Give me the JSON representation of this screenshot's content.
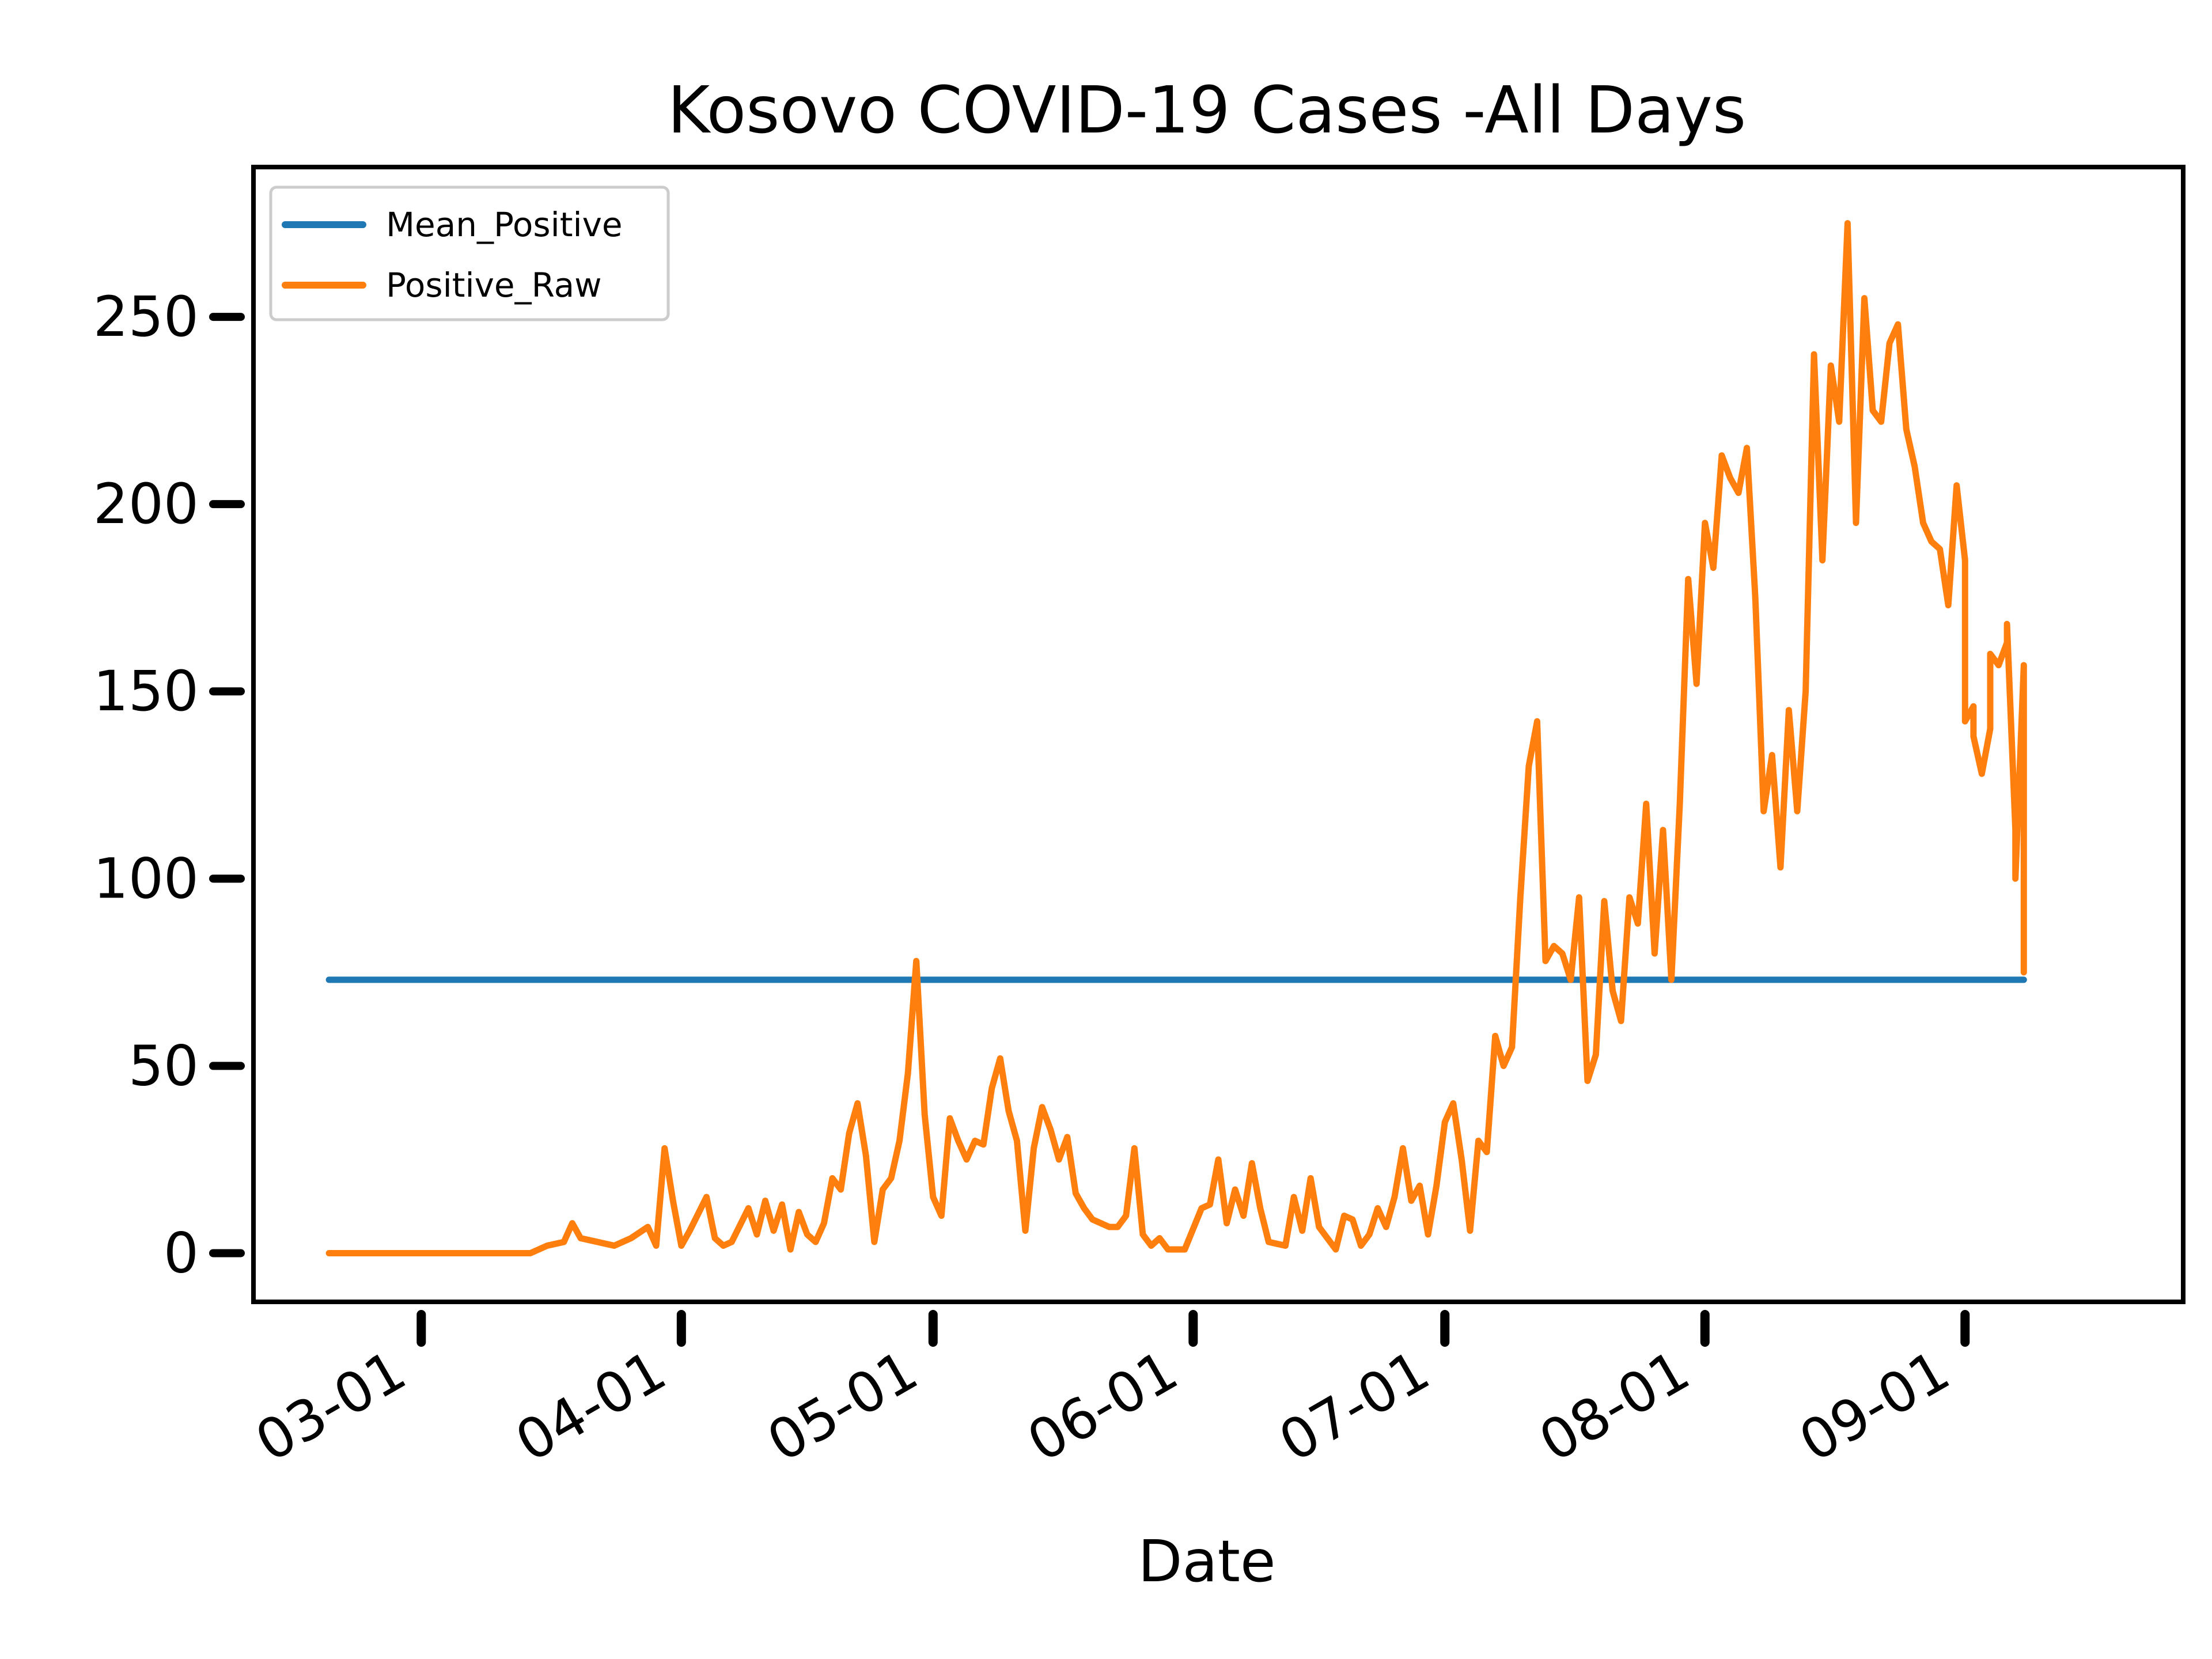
{
  "chart_data": {
    "type": "line",
    "title": "Kosovo COVID-19 Cases -All Days",
    "xlabel": "Date",
    "ylabel": "",
    "x_ticks": [
      "03-01",
      "04-01",
      "05-01",
      "06-01",
      "07-01",
      "08-01",
      "09-01"
    ],
    "x_tick_dates": [
      "2020-03-01",
      "2020-04-01",
      "2020-05-01",
      "2020-06-01",
      "2020-07-01",
      "2020-08-01",
      "2020-09-01"
    ],
    "x_range": [
      "2020-02-10",
      "2020-09-27"
    ],
    "y_ticks": [
      0,
      50,
      100,
      150,
      200,
      250
    ],
    "ylim": [
      -13,
      290
    ],
    "legend_position": "top-left",
    "colors": {
      "Mean_Positive": "#1f77b4",
      "Positive_Raw": "#ff7f0e"
    },
    "series": [
      {
        "name": "Mean_Positive",
        "points": [
          [
            "2020-02-19",
            73
          ],
          [
            "2020-09-08",
            73
          ]
        ]
      },
      {
        "name": "Positive_Raw",
        "points": [
          [
            "2020-02-19",
            0
          ],
          [
            "2020-02-23",
            0
          ],
          [
            "2020-02-27",
            0
          ],
          [
            "2020-03-02",
            0
          ],
          [
            "2020-03-06",
            0
          ],
          [
            "2020-03-10",
            0
          ],
          [
            "2020-03-14",
            0
          ],
          [
            "2020-03-16",
            2
          ],
          [
            "2020-03-18",
            3
          ],
          [
            "2020-03-19",
            8
          ],
          [
            "2020-03-20",
            4
          ],
          [
            "2020-03-22",
            3
          ],
          [
            "2020-03-24",
            2
          ],
          [
            "2020-03-26",
            4
          ],
          [
            "2020-03-28",
            7
          ],
          [
            "2020-03-29",
            2
          ],
          [
            "2020-03-30",
            28
          ],
          [
            "2020-03-31",
            14
          ],
          [
            "2020-04-01",
            2
          ],
          [
            "2020-04-02",
            6
          ],
          [
            "2020-04-04",
            15
          ],
          [
            "2020-04-05",
            4
          ],
          [
            "2020-04-06",
            2
          ],
          [
            "2020-04-07",
            3
          ],
          [
            "2020-04-09",
            12
          ],
          [
            "2020-04-10",
            5
          ],
          [
            "2020-04-11",
            14
          ],
          [
            "2020-04-12",
            6
          ],
          [
            "2020-04-13",
            13
          ],
          [
            "2020-04-14",
            1
          ],
          [
            "2020-04-15",
            11
          ],
          [
            "2020-04-16",
            5
          ],
          [
            "2020-04-17",
            3
          ],
          [
            "2020-04-18",
            8
          ],
          [
            "2020-04-19",
            20
          ],
          [
            "2020-04-20",
            17
          ],
          [
            "2020-04-21",
            32
          ],
          [
            "2020-04-22",
            40
          ],
          [
            "2020-04-23",
            26
          ],
          [
            "2020-04-24",
            3
          ],
          [
            "2020-04-25",
            17
          ],
          [
            "2020-04-26",
            20
          ],
          [
            "2020-04-27",
            30
          ],
          [
            "2020-04-28",
            48
          ],
          [
            "2020-04-29",
            78
          ],
          [
            "2020-04-30",
            37
          ],
          [
            "2020-05-01",
            15
          ],
          [
            "2020-05-02",
            10
          ],
          [
            "2020-05-03",
            36
          ],
          [
            "2020-05-04",
            30
          ],
          [
            "2020-05-05",
            25
          ],
          [
            "2020-05-06",
            30
          ],
          [
            "2020-05-07",
            29
          ],
          [
            "2020-05-08",
            44
          ],
          [
            "2020-05-09",
            52
          ],
          [
            "2020-05-10",
            38
          ],
          [
            "2020-05-11",
            30
          ],
          [
            "2020-05-12",
            6
          ],
          [
            "2020-05-13",
            28
          ],
          [
            "2020-05-14",
            39
          ],
          [
            "2020-05-15",
            33
          ],
          [
            "2020-05-16",
            25
          ],
          [
            "2020-05-17",
            31
          ],
          [
            "2020-05-18",
            16
          ],
          [
            "2020-05-19",
            12
          ],
          [
            "2020-05-20",
            9
          ],
          [
            "2020-05-21",
            8
          ],
          [
            "2020-05-22",
            7
          ],
          [
            "2020-05-23",
            7
          ],
          [
            "2020-05-24",
            10
          ],
          [
            "2020-05-25",
            28
          ],
          [
            "2020-05-26",
            5
          ],
          [
            "2020-05-27",
            2
          ],
          [
            "2020-05-28",
            4
          ],
          [
            "2020-05-29",
            1
          ],
          [
            "2020-05-31",
            1
          ],
          [
            "2020-06-02",
            12
          ],
          [
            "2020-06-03",
            13
          ],
          [
            "2020-06-04",
            25
          ],
          [
            "2020-06-05",
            8
          ],
          [
            "2020-06-06",
            17
          ],
          [
            "2020-06-07",
            10
          ],
          [
            "2020-06-08",
            24
          ],
          [
            "2020-06-09",
            12
          ],
          [
            "2020-06-10",
            3
          ],
          [
            "2020-06-12",
            2
          ],
          [
            "2020-06-13",
            15
          ],
          [
            "2020-06-14",
            6
          ],
          [
            "2020-06-15",
            20
          ],
          [
            "2020-06-16",
            7
          ],
          [
            "2020-06-18",
            1
          ],
          [
            "2020-06-19",
            10
          ],
          [
            "2020-06-20",
            9
          ],
          [
            "2020-06-21",
            2
          ],
          [
            "2020-06-22",
            5
          ],
          [
            "2020-06-23",
            12
          ],
          [
            "2020-06-24",
            7
          ],
          [
            "2020-06-25",
            15
          ],
          [
            "2020-06-26",
            28
          ],
          [
            "2020-06-27",
            14
          ],
          [
            "2020-06-28",
            18
          ],
          [
            "2020-06-29",
            5
          ],
          [
            "2020-06-30",
            18
          ],
          [
            "2020-07-01",
            35
          ],
          [
            "2020-07-02",
            40
          ],
          [
            "2020-07-03",
            25
          ],
          [
            "2020-07-04",
            6
          ],
          [
            "2020-07-05",
            30
          ],
          [
            "2020-07-06",
            27
          ],
          [
            "2020-07-07",
            58
          ],
          [
            "2020-07-08",
            50
          ],
          [
            "2020-07-09",
            55
          ],
          [
            "2020-07-10",
            95
          ],
          [
            "2020-07-11",
            130
          ],
          [
            "2020-07-12",
            142
          ],
          [
            "2020-07-13",
            78
          ],
          [
            "2020-07-14",
            82
          ],
          [
            "2020-07-15",
            80
          ],
          [
            "2020-07-16",
            73
          ],
          [
            "2020-07-17",
            95
          ],
          [
            "2020-07-18",
            46
          ],
          [
            "2020-07-19",
            53
          ],
          [
            "2020-07-20",
            94
          ],
          [
            "2020-07-21",
            70
          ],
          [
            "2020-07-22",
            62
          ],
          [
            "2020-07-23",
            95
          ],
          [
            "2020-07-24",
            88
          ],
          [
            "2020-07-25",
            120
          ],
          [
            "2020-07-26",
            80
          ],
          [
            "2020-07-27",
            113
          ],
          [
            "2020-07-28",
            73
          ],
          [
            "2020-07-29",
            120
          ],
          [
            "2020-07-30",
            180
          ],
          [
            "2020-07-31",
            152
          ],
          [
            "2020-08-01",
            195
          ],
          [
            "2020-08-02",
            183
          ],
          [
            "2020-08-03",
            213
          ],
          [
            "2020-08-04",
            207
          ],
          [
            "2020-08-05",
            203
          ],
          [
            "2020-08-06",
            215
          ],
          [
            "2020-08-07",
            175
          ],
          [
            "2020-08-08",
            118
          ],
          [
            "2020-08-09",
            133
          ],
          [
            "2020-08-10",
            103
          ],
          [
            "2020-08-11",
            145
          ],
          [
            "2020-08-12",
            118
          ],
          [
            "2020-08-13",
            150
          ],
          [
            "2020-08-14",
            240
          ],
          [
            "2020-08-15",
            185
          ],
          [
            "2020-08-16",
            237
          ],
          [
            "2020-08-17",
            222
          ],
          [
            "2020-08-18",
            275
          ],
          [
            "2020-08-19",
            195
          ],
          [
            "2020-08-20",
            255
          ],
          [
            "2020-08-21",
            225
          ],
          [
            "2020-08-22",
            222
          ],
          [
            "2020-08-23",
            243
          ],
          [
            "2020-08-24",
            248
          ],
          [
            "2020-08-25",
            220
          ],
          [
            "2020-08-26",
            210
          ],
          [
            "2020-08-27",
            195
          ],
          [
            "2020-08-28",
            190
          ],
          [
            "2020-08-29",
            188
          ],
          [
            "2020-08-30",
            173
          ],
          [
            "2020-08-31",
            205
          ],
          [
            "2020-09-01",
            185
          ],
          [
            "2020-09-01",
            142
          ],
          [
            "2020-09-02",
            146
          ],
          [
            "2020-09-02",
            138
          ],
          [
            "2020-09-03",
            128
          ],
          [
            "2020-09-04",
            140
          ],
          [
            "2020-09-04",
            160
          ],
          [
            "2020-09-05",
            157
          ],
          [
            "2020-09-06",
            163
          ],
          [
            "2020-09-06",
            168
          ],
          [
            "2020-09-07",
            113
          ],
          [
            "2020-09-07",
            100
          ],
          [
            "2020-09-08",
            157
          ],
          [
            "2020-09-08",
            120
          ],
          [
            "2020-09-08",
            113
          ],
          [
            "2020-09-08",
            117
          ],
          [
            "2020-09-08",
            147
          ],
          [
            "2020-09-08",
            78
          ],
          [
            "2020-09-08",
            118
          ],
          [
            "2020-09-08",
            93
          ],
          [
            "2020-09-08",
            95
          ],
          [
            "2020-09-08",
            75
          ]
        ]
      }
    ]
  }
}
